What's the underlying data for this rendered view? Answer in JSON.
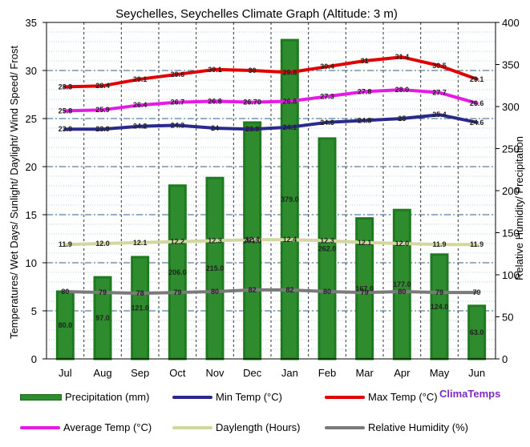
{
  "chart_data": {
    "type": "bar",
    "title": "Seychelles, Seychelles Climate Graph (Altitude: 3 m)",
    "ylabel": "Temperatures/ Wet Days/ Sunlight/ Daylight/ Wind Speed/ Frost",
    "ylabel_right": "Relative Humidity/ Precipitation",
    "ylim": [
      0,
      35
    ],
    "ylim_right": [
      0,
      400
    ],
    "yticks": [
      "0",
      "5",
      "10",
      "15",
      "20",
      "25",
      "30",
      "35"
    ],
    "yticks_right": [
      "0",
      "50",
      "100",
      "150",
      "200",
      "250",
      "300",
      "350",
      "400"
    ],
    "categories": [
      "Jul",
      "Aug",
      "Sep",
      "Oct",
      "Nov",
      "Dec",
      "Jan",
      "Feb",
      "Mar",
      "Apr",
      "May",
      "Jun"
    ],
    "precipitation": {
      "name": "Precipitation (mm)",
      "color": "#2e8b2e",
      "values": [
        80.0,
        97.0,
        121.0,
        206.0,
        215.0,
        281.0,
        379.0,
        262.0,
        167.0,
        177.0,
        124.0,
        63.0
      ],
      "labels": [
        "80.0",
        "97.0",
        "121.0",
        "206.0",
        "215.0",
        "281.0",
        "379.0",
        "262.0",
        "167.0",
        "177.0",
        "124.0",
        "63.0"
      ]
    },
    "series": [
      {
        "name": "Max Temp (°C)",
        "color": "#e00000",
        "axis": "left",
        "values": [
          28.3,
          28.4,
          29.1,
          29.6,
          30.1,
          30.0,
          29.8,
          30.4,
          31.0,
          31.4,
          30.5,
          29.1
        ],
        "labels": [
          "28.3",
          "28.4",
          "29.1",
          "29.6",
          "30.1",
          "30",
          "29.8",
          "30.4",
          "31",
          "31.4",
          "30.5",
          "29.1"
        ]
      },
      {
        "name": "Average Temp (°C)",
        "color": "#e619e6",
        "axis": "left",
        "values": [
          25.8,
          25.9,
          26.4,
          26.7,
          26.8,
          26.7,
          26.8,
          27.3,
          27.8,
          28.0,
          27.7,
          26.6
        ],
        "labels": [
          "25.8",
          "25.9",
          "26.4",
          "26.7",
          "26.8",
          "26.70",
          "26.8",
          "27.3",
          "27.8",
          "28.0",
          "27.7",
          "26.6"
        ]
      },
      {
        "name": "Min Temp (°C)",
        "color": "#2a2a8c",
        "axis": "left",
        "values": [
          23.9,
          23.9,
          24.2,
          24.3,
          24.0,
          23.9,
          24.1,
          24.6,
          24.8,
          25.0,
          25.4,
          24.6
        ],
        "labels": [
          "23.9",
          "23.9",
          "24.2",
          "24.3",
          "24",
          "23.9",
          "24.1",
          "24.6",
          "24.8",
          "25",
          "25.4",
          "24.6"
        ]
      },
      {
        "name": "Daylength (Hours)",
        "color": "#d2d7a0",
        "axis": "left",
        "values": [
          11.9,
          12.0,
          12.1,
          12.2,
          12.3,
          12.4,
          12.4,
          12.3,
          12.1,
          12.0,
          11.9,
          11.9
        ],
        "labels": [
          "11.9",
          "12.0",
          "12.1",
          "12.2",
          "12.3",
          "12.4",
          "12.4",
          "12.3",
          "12.1",
          "12.0",
          "11.9",
          "11.9"
        ]
      },
      {
        "name": "Relative Humidity (%)",
        "color": "#7a7a7a",
        "axis": "right",
        "values": [
          80,
          79,
          78,
          79,
          80,
          82,
          82,
          80,
          79,
          80,
          79,
          79
        ],
        "labels": [
          "80",
          "79",
          "78",
          "79",
          "80",
          "82",
          "82",
          "80",
          "79",
          "80",
          "79",
          "79"
        ]
      }
    ],
    "grid": true,
    "legend_position": "bottom"
  },
  "legend": {
    "items": [
      {
        "label": "Precipitation (mm)",
        "kind": "bar",
        "color": "#2e8b2e"
      },
      {
        "label": "Min Temp (°C)",
        "kind": "line",
        "color": "#2a2a8c"
      },
      {
        "label": "Max Temp (°C)",
        "kind": "line",
        "color": "#e00000"
      },
      {
        "label": "Average Temp (°C)",
        "kind": "line",
        "color": "#e619e6"
      },
      {
        "label": "Daylength (Hours)",
        "kind": "line",
        "color": "#d2d7a0"
      },
      {
        "label": "Relative Humidity (%)",
        "kind": "line",
        "color": "#7a7a7a"
      }
    ],
    "brand": "ClimaTemps"
  }
}
